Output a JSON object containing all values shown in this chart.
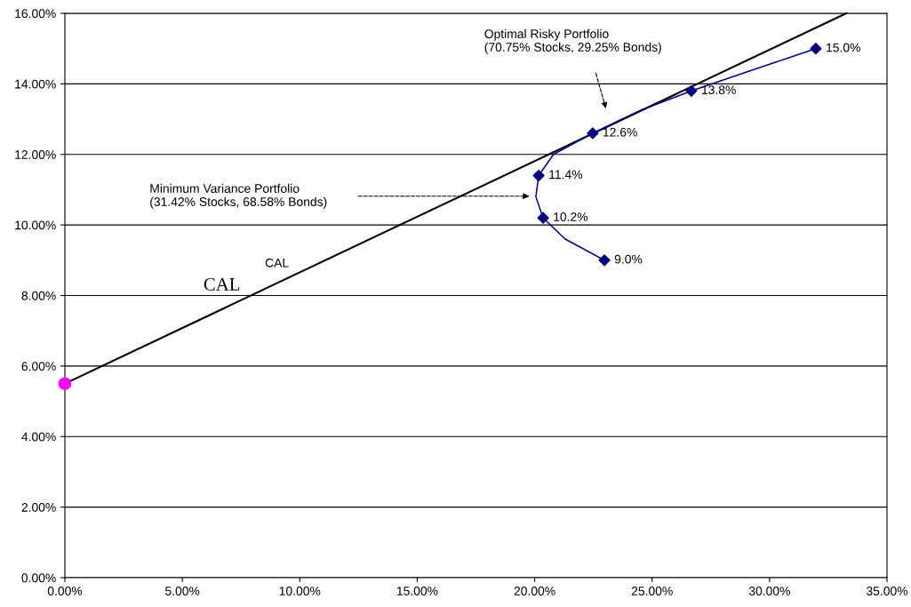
{
  "chart_data": {
    "type": "line",
    "xlim": [
      0,
      35
    ],
    "ylim": [
      0,
      16
    ],
    "xticks": [
      {
        "value": 0,
        "label": "0.00%"
      },
      {
        "value": 5,
        "label": "5.00%"
      },
      {
        "value": 10,
        "label": "10.00%"
      },
      {
        "value": 15,
        "label": "15.00%"
      },
      {
        "value": 20,
        "label": "20.00%"
      },
      {
        "value": 25,
        "label": "25.00%"
      },
      {
        "value": 30,
        "label": "30.00%"
      },
      {
        "value": 35,
        "label": "35.00%"
      }
    ],
    "yticks": [
      {
        "value": 0,
        "label": "0.00%"
      },
      {
        "value": 2,
        "label": "2.00%"
      },
      {
        "value": 4,
        "label": "4.00%"
      },
      {
        "value": 6,
        "label": "6.00%"
      },
      {
        "value": 8,
        "label": "8.00%"
      },
      {
        "value": 10,
        "label": "10.00%"
      },
      {
        "value": 12,
        "label": "12.00%"
      },
      {
        "value": 14,
        "label": "14.00%"
      },
      {
        "value": 16,
        "label": "16.00%"
      }
    ],
    "grid": "y",
    "series": [
      {
        "type": "line",
        "color": "#000000",
        "marker": "none",
        "x": [
          0,
          33.27
        ],
        "values": [
          5.5,
          16
        ]
      },
      {
        "color": "#000080",
        "marker": "none",
        "x": [
          22.97,
          21.3,
          20.36,
          20.05,
          20.17,
          20.8,
          22.47,
          24.5,
          26.67,
          29.3,
          31.97
        ],
        "values": [
          9.0,
          9.6,
          10.2,
          10.8,
          11.4,
          12.0,
          12.6,
          13.25,
          13.8,
          14.4,
          15.0
        ]
      },
      {
        "type": "scatter",
        "color": "#000080",
        "marker": "diamond",
        "x": [
          22.97,
          20.36,
          20.17,
          22.47,
          26.67,
          31.97
        ],
        "values": [
          9.0,
          10.2,
          11.4,
          12.6,
          13.8,
          15.0
        ],
        "value_labels": [
          "9.0%",
          "10.2%",
          "11.4%",
          "12.6%",
          "13.8%",
          "15.0%"
        ]
      },
      {
        "type": "scatter",
        "color": "#ff00ff",
        "marker": "circle",
        "x": [
          0
        ],
        "values": [
          5.5
        ]
      }
    ],
    "annotations": [
      "Optimal Risky Portfolio\n(70.75% Stocks, 29.25% Bonds)",
      "Minimum Variance Portfolio\n(31.42% Stocks, 68.58% Bonds)",
      "CAL",
      "CAL"
    ]
  }
}
